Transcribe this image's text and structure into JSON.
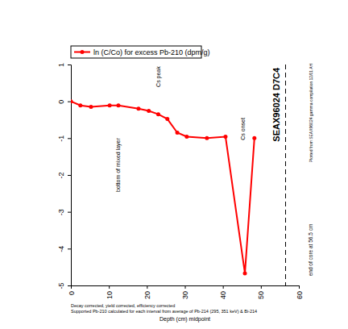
{
  "chart_data": {
    "type": "line",
    "x": [
      0,
      2.5,
      5.3,
      10.2,
      12.5,
      17.8,
      20.5,
      23,
      25.4,
      28,
      30.5,
      35.8,
      40.7,
      45.8,
      48.3
    ],
    "series": [
      {
        "name": "ln (C/Co) for excess Pb-210 (dpm/g)",
        "color": "#ff0000",
        "marker": "circle",
        "values": [
          0,
          -0.11,
          -0.15,
          -0.11,
          -0.11,
          -0.2,
          -0.26,
          -0.35,
          -0.48,
          -0.85,
          -0.96,
          -1.0,
          -0.96,
          -4.67,
          -1.0
        ]
      }
    ],
    "xlim": [
      0,
      60
    ],
    "ylim": [
      -5,
      1
    ],
    "xticks": [
      0,
      10,
      20,
      30,
      40,
      50,
      60
    ],
    "yticks": [
      1,
      0,
      -1,
      -2,
      -3,
      -4,
      -5
    ],
    "x_label": "Depth (cm) midpoint",
    "legend": "top",
    "annotations": [
      {
        "text": "bottom of mixed layer",
        "x": 12.5,
        "y": -1.73
      },
      {
        "text": "Cs peak",
        "x": 23,
        "y": 0.67
      },
      {
        "text": "Cs onset",
        "x": 45.3,
        "y": -0.75
      }
    ],
    "core_label": {
      "text": "SEAX96024 D7C4",
      "x": 54,
      "y": -0.09
    },
    "reference_lines": [
      {
        "x": 56.5,
        "line_style": "dashed"
      }
    ],
    "side_notes": [
      "Plotted from SEAX96024 gamma compilation 12/01 AH",
      "end of core at 56.5 cm"
    ],
    "notes": [
      "Decay corrected, yield corrected, efficiency corrected",
      "Supported Pb-210 calculated for each interval from average of Pb-214 (295, 351 keV) & Bi-214"
    ]
  }
}
